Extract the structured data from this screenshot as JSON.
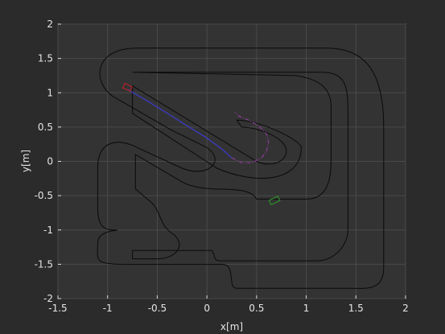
{
  "chart_data": {
    "type": "line",
    "title": "",
    "xlabel": "x[m]",
    "ylabel": "y[m]",
    "xlim": [
      -1.5,
      2
    ],
    "ylim": [
      -2,
      2
    ],
    "x_ticks": [
      -1.5,
      -1,
      -0.5,
      0,
      0.5,
      1,
      1.5,
      2
    ],
    "y_ticks": [
      -2,
      -1.5,
      -1,
      -0.5,
      0,
      0.5,
      1,
      1.5,
      2
    ],
    "x_tick_labels": [
      "-1.5",
      "-1",
      "-0.5",
      "0",
      "0.5",
      "1",
      "1.5",
      "2"
    ],
    "y_tick_labels": [
      "-2",
      "-1.5",
      "-1",
      "-0.5",
      "0",
      "0.5",
      "1",
      "1.5",
      "2"
    ],
    "grid": true,
    "colors": {
      "background": "#2b2b2b",
      "axes_bg": "#333333",
      "axis": "#dddddd",
      "grid": "#4a4a4a",
      "track": "#0a0a0a",
      "actual_path": "#3c3cd2",
      "planned_path": "#8c3c9c",
      "vehicle": "#b4232a",
      "goal": "#2e8b2e"
    },
    "series": [
      {
        "role": "track-outer-boundary",
        "x": [
          -0.8,
          -0.95,
          -1.1,
          -1.1,
          -0.95,
          -0.6,
          -0.3,
          0.3,
          0.9,
          1.35,
          1.62,
          1.78,
          1.78,
          1.78,
          1.7,
          1.5,
          1.15,
          0.9,
          0.7,
          0.6,
          0.5,
          0.45,
          0.4,
          0.35,
          0.15,
          0.05,
          -0.9,
          -1.05,
          -1.1,
          -1.1,
          -1.05,
          -0.85,
          -0.6,
          -0.6,
          -0.85,
          -1.05,
          -1.1,
          -1.1,
          -1.0,
          -0.8,
          -0.45,
          -0.5,
          -0.7,
          -0.8
        ],
        "y": [
          1.65,
          1.63,
          1.5,
          1.15,
          1.0,
          0.72,
          0.55,
          0.25,
          -0.05,
          -0.2,
          -0.3,
          -0.38,
          0.5,
          0.95,
          1.2,
          1.5,
          1.65,
          1.67,
          1.67,
          1.67,
          1.67,
          1.67,
          1.67,
          1.67,
          1.67,
          1.67,
          1.67,
          1.65,
          1.55,
          1.65,
          1.67,
          1.67,
          1.67,
          1.67,
          1.67,
          1.65,
          1.55,
          1.65,
          1.67,
          1.67,
          1.67,
          1.67,
          1.67,
          1.65
        ]
      },
      {
        "role": "actual-path",
        "x": [
          -0.8,
          -0.6,
          -0.4,
          -0.2,
          0.0,
          0.15,
          0.25
        ],
        "y": [
          1.05,
          0.88,
          0.7,
          0.52,
          0.34,
          0.18,
          0.05
        ]
      },
      {
        "role": "planned-path",
        "x": [
          0.25,
          0.35,
          0.45,
          0.55,
          0.6,
          0.62,
          0.6,
          0.52,
          0.42,
          0.32,
          0.28
        ],
        "y": [
          0.05,
          -0.02,
          -0.02,
          0.05,
          0.15,
          0.28,
          0.4,
          0.52,
          0.6,
          0.66,
          0.72
        ]
      }
    ]
  }
}
